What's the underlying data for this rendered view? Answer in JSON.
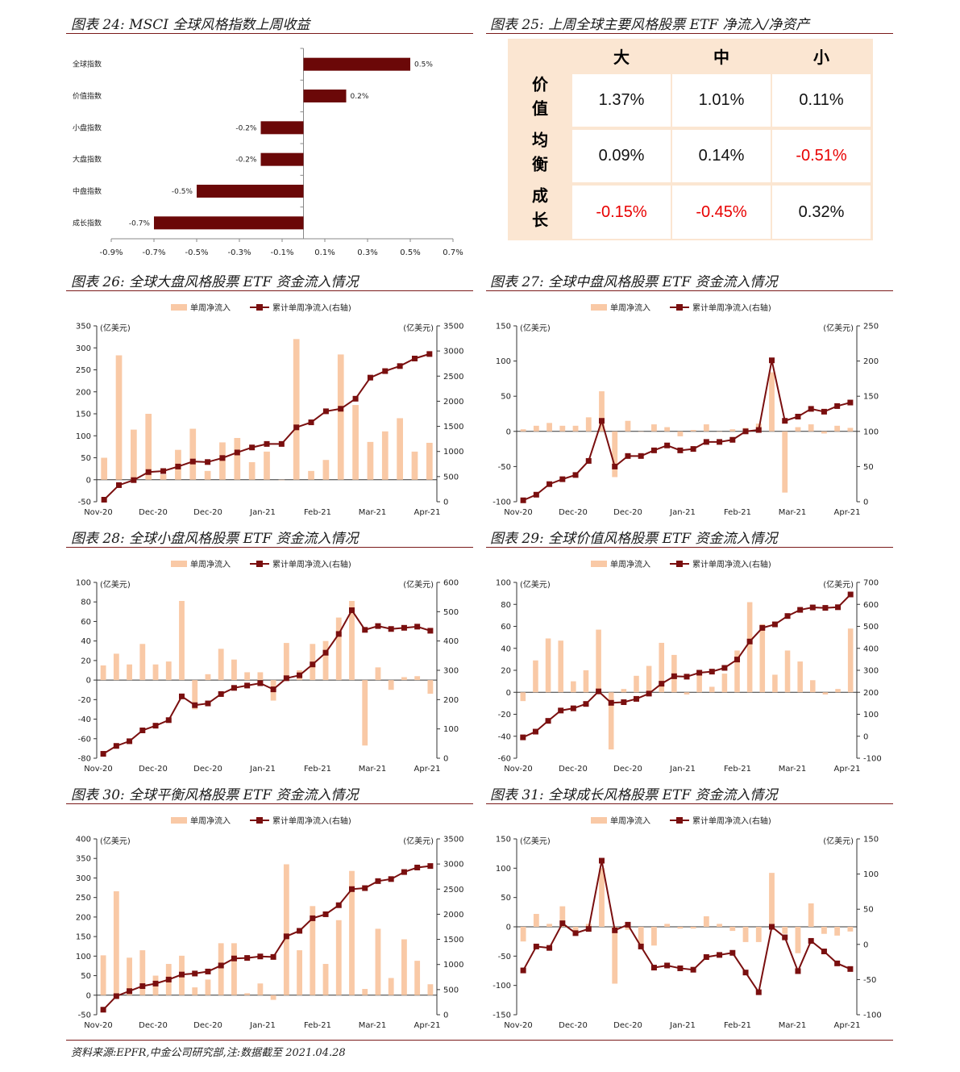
{
  "titles": {
    "t24": "图表 24: MSCI 全球风格指数上周收益",
    "t25": "图表 25: 上周全球主要风格股票 ETF 净流入/净资产",
    "t26": "图表 26: 全球大盘风格股票 ETF 资金流入情况",
    "t27": "图表 27: 全球中盘风格股票 ETF 资金流入情况",
    "t28": "图表 28: 全球小盘风格股票 ETF 资金流入情况",
    "t29": "图表 29: 全球价值风格股票 ETF 资金流入情况",
    "t30": "图表 30: 全球平衡风格股票 ETF 资金流入情况",
    "t31": "图表 31: 全球成长风格股票 ETF 资金流入情况"
  },
  "source": "资料来源:EPFR,中金公司研究部,注:数据截至 2021.04.28",
  "table": {
    "col_headers": [
      "大",
      "中",
      "小"
    ],
    "row_headers": [
      "价值",
      "均衡",
      "成长"
    ],
    "rows": [
      [
        "1.37%",
        "1.01%",
        "0.11%"
      ],
      [
        "0.09%",
        "0.14%",
        "-0.51%"
      ],
      [
        "-0.15%",
        "-0.45%",
        "0.32%"
      ]
    ]
  },
  "colors": {
    "bar": "#f9c9a6",
    "line": "#7a0f0f",
    "hbar": "#6b0808",
    "neg": "#e80000"
  },
  "chart_data": [
    {
      "id": "c24",
      "type": "bar",
      "orientation": "horizontal",
      "categories": [
        "全球指数",
        "价值指数",
        "小盘指数",
        "大盘指数",
        "中盘指数",
        "成长指数"
      ],
      "values": [
        0.5,
        0.2,
        -0.2,
        -0.2,
        -0.5,
        -0.7
      ],
      "labels": [
        "0.5%",
        "0.2%",
        "-0.2%",
        "-0.2%",
        "-0.5%",
        "-0.7%"
      ],
      "xlim": [
        -0.9,
        0.7
      ],
      "xticks": [
        "-0.9%",
        "-0.7%",
        "-0.5%",
        "-0.3%",
        "-0.1%",
        "0.1%",
        "0.3%",
        "0.5%",
        "0.7%"
      ]
    },
    {
      "id": "c26",
      "type": "bar+line",
      "legend": [
        "单周净流入",
        "累计单周净流入(右轴)"
      ],
      "unit_left": "(亿美元)",
      "unit_right": "(亿美元)",
      "ylim_left": [
        -50,
        350
      ],
      "ylim_right": [
        0,
        3500
      ],
      "yticks_left": [
        "-50",
        "0",
        "50",
        "100",
        "150",
        "200",
        "250",
        "300",
        "350"
      ],
      "yticks_right": [
        "0",
        "500",
        "1000",
        "1500",
        "2000",
        "2500",
        "3000",
        "3500"
      ],
      "xticks": [
        "Nov-20",
        "Dec-20",
        "Dec-20",
        "Jan-21",
        "Feb-21",
        "Mar-21",
        "Apr-21"
      ],
      "bars": [
        50,
        283,
        114,
        150,
        12,
        68,
        116,
        20,
        85,
        95,
        40,
        64,
        0,
        320,
        20,
        45,
        285,
        170,
        86,
        110,
        140,
        64,
        84
      ],
      "line": [
        40,
        330,
        430,
        590,
        610,
        700,
        800,
        790,
        870,
        980,
        1080,
        1150,
        1150,
        1480,
        1580,
        1800,
        1850,
        2050,
        2470,
        2600,
        2700,
        2850,
        2940
      ]
    },
    {
      "id": "c27",
      "type": "bar+line",
      "legend": [
        "单周净流入",
        "累计单周净流入(右轴)"
      ],
      "unit_left": "(亿美元)",
      "unit_right": "(亿美元)",
      "ylim_left": [
        -100,
        150
      ],
      "ylim_right": [
        0,
        250
      ],
      "yticks_left": [
        "-100",
        "-50",
        "0",
        "50",
        "100",
        "150"
      ],
      "yticks_right": [
        "0",
        "50",
        "100",
        "150",
        "200",
        "250"
      ],
      "xticks": [
        "Nov-20",
        "Dec-20",
        "Dec-20",
        "Jan-21",
        "Feb-21",
        "Mar-21",
        "Apr-21"
      ],
      "bars": [
        3,
        8,
        12,
        8,
        8,
        20,
        57,
        -65,
        15,
        0,
        10,
        6,
        -7,
        2,
        10,
        0,
        3,
        5,
        11,
        84,
        -87,
        6,
        10,
        -3,
        8,
        5
      ],
      "line": [
        2,
        10,
        25,
        32,
        38,
        58,
        115,
        50,
        65,
        65,
        73,
        80,
        73,
        75,
        85,
        85,
        88,
        100,
        102,
        201,
        115,
        121,
        132,
        128,
        136,
        141
      ]
    },
    {
      "id": "c28",
      "type": "bar+line",
      "legend": [
        "单周净流入",
        "累计单周净流入(右轴)"
      ],
      "unit_left": "(亿美元)",
      "unit_right": "(亿美元)",
      "ylim_left": [
        -80,
        100
      ],
      "ylim_right": [
        0,
        600
      ],
      "yticks_left": [
        "-80",
        "-60",
        "-40",
        "-20",
        "0",
        "20",
        "40",
        "60",
        "80",
        "100"
      ],
      "yticks_right": [
        "0",
        "100",
        "200",
        "300",
        "400",
        "500",
        "600"
      ],
      "xticks": [
        "Nov-20",
        "Dec-20",
        "Dec-20",
        "Jan-21",
        "Feb-21",
        "Mar-21",
        "Apr-21"
      ],
      "bars": [
        15,
        27,
        16,
        37,
        16,
        19,
        81,
        -30,
        6,
        32,
        21,
        8,
        8,
        -21,
        38,
        10,
        37,
        40,
        64,
        81,
        -67,
        13,
        -10,
        3,
        4,
        -14
      ],
      "line": [
        15,
        42,
        58,
        95,
        111,
        130,
        211,
        181,
        187,
        219,
        240,
        248,
        256,
        235,
        273,
        283,
        320,
        360,
        424,
        505,
        438,
        451,
        441,
        445,
        449,
        435
      ]
    },
    {
      "id": "c29",
      "type": "bar+line",
      "legend": [
        "单周净流入",
        "累计单周净流入(右轴)"
      ],
      "unit_left": "(亿美元)",
      "unit_right": "(亿美元)",
      "ylim_left": [
        -60,
        100
      ],
      "ylim_right": [
        -100,
        700
      ],
      "yticks_left": [
        "-60",
        "-40",
        "-20",
        "0",
        "20",
        "40",
        "60",
        "80",
        "100"
      ],
      "yticks_right": [
        "-100",
        "0",
        "100",
        "200",
        "300",
        "400",
        "500",
        "600",
        "700"
      ],
      "xticks": [
        "Nov-20",
        "Dec-20",
        "Dec-20",
        "Jan-21",
        "Feb-21",
        "Mar-21",
        "Apr-21"
      ],
      "bars": [
        -8,
        29,
        49,
        47,
        10,
        20,
        57,
        -52,
        3,
        15,
        24,
        45,
        34,
        -2,
        18,
        5,
        17,
        38,
        82,
        62,
        16,
        38,
        28,
        11,
        -2,
        3,
        58
      ],
      "line": [
        -5,
        21,
        70,
        117,
        127,
        147,
        204,
        152,
        155,
        170,
        194,
        239,
        273,
        271,
        289,
        294,
        311,
        349,
        431,
        493,
        509,
        547,
        575,
        586,
        584,
        587,
        645
      ]
    },
    {
      "id": "c30",
      "type": "bar+line",
      "legend": [
        "单周净流入",
        "累计单周净流入(右轴)"
      ],
      "unit_left": "(亿美元)",
      "unit_right": "(亿美元)",
      "ylim_left": [
        -50,
        400
      ],
      "ylim_right": [
        0,
        3500
      ],
      "yticks_left": [
        "-50",
        "0",
        "50",
        "100",
        "150",
        "200",
        "250",
        "300",
        "350",
        "400"
      ],
      "yticks_right": [
        "0",
        "500",
        "1000",
        "1500",
        "2000",
        "2500",
        "3000",
        "3500"
      ],
      "xticks": [
        "Nov-20",
        "Dec-20",
        "Dec-20",
        "Jan-21",
        "Feb-21",
        "Mar-21",
        "Apr-21"
      ],
      "bars": [
        102,
        266,
        96,
        115,
        50,
        80,
        101,
        20,
        40,
        133,
        133,
        5,
        30,
        -12,
        335,
        115,
        228,
        80,
        192,
        318,
        16,
        170,
        44,
        143,
        88,
        28
      ],
      "line": [
        100,
        370,
        470,
        570,
        620,
        700,
        800,
        820,
        860,
        980,
        1120,
        1130,
        1160,
        1150,
        1560,
        1670,
        1920,
        2000,
        2180,
        2500,
        2520,
        2660,
        2700,
        2840,
        2930,
        2960
      ]
    },
    {
      "id": "c31",
      "type": "bar+line",
      "legend": [
        "单周净流入",
        "累计单周净流入(右轴)"
      ],
      "unit_left": "(亿美元)",
      "unit_right": "(亿美元)",
      "ylim_left": [
        -150,
        150
      ],
      "ylim_right": [
        -100,
        150
      ],
      "yticks_left": [
        "-150",
        "-100",
        "-50",
        "0",
        "50",
        "100",
        "150"
      ],
      "yticks_right": [
        "-100",
        "-50",
        "0",
        "50",
        "100",
        "150"
      ],
      "xticks": [
        "Nov-20",
        "Dec-20",
        "Dec-20",
        "Jan-21",
        "Feb-21",
        "Mar-21",
        "Apr-21"
      ],
      "bars": [
        -25,
        22,
        5,
        35,
        -12,
        5,
        100,
        -97,
        -5,
        -30,
        -32,
        5,
        -3,
        -3,
        18,
        5,
        -7,
        -26,
        -26,
        92,
        -12,
        -45,
        40,
        -12,
        -15,
        -8
      ],
      "line": [
        -37,
        -3,
        -5,
        30,
        16,
        22,
        119,
        20,
        28,
        -3,
        -33,
        -30,
        -34,
        -36,
        -18,
        -15,
        -12,
        -40,
        -68,
        25,
        10,
        -38,
        5,
        -10,
        -27,
        -35
      ]
    }
  ]
}
